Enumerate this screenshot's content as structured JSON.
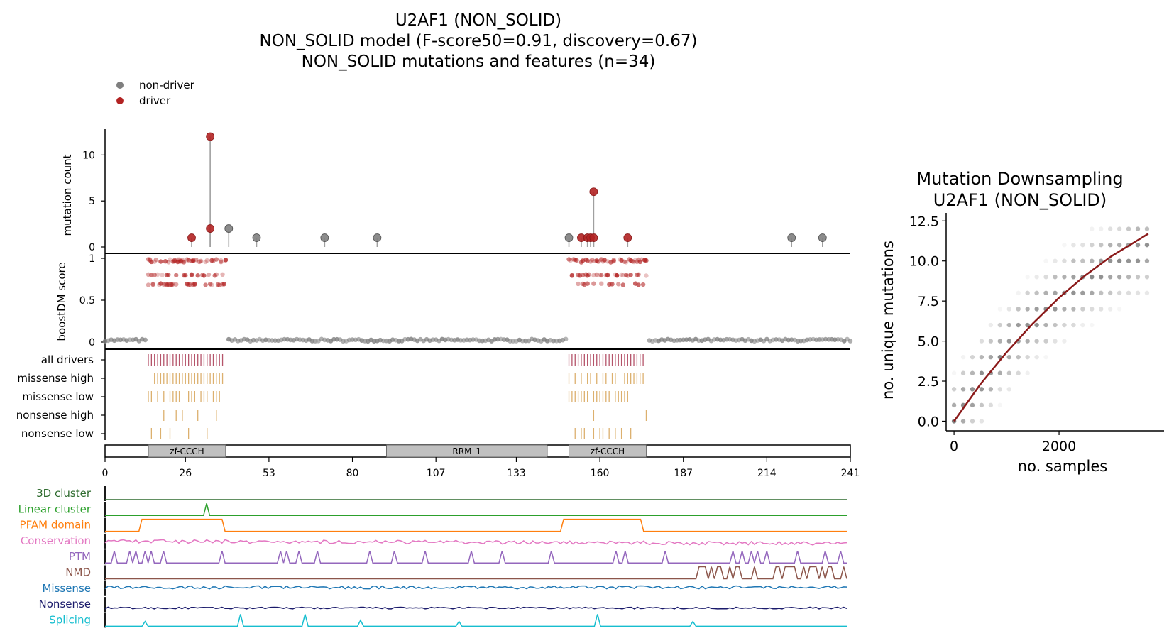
{
  "title_lines": [
    "U2AF1 (NON_SOLID)",
    "NON_SOLID model (F-score50=0.91, discovery=0.67)",
    "NON_SOLID mutations and features (n=34)"
  ],
  "legend": {
    "placement": "top-left",
    "items": [
      {
        "label": "non-driver",
        "color": "#7f7f7f"
      },
      {
        "label": "driver",
        "color": "#b22222"
      }
    ]
  },
  "colors": {
    "driver": "#b22222",
    "non_driver": "#7f7f7f",
    "stem": "#a0a0a0",
    "all_drivers_tick": "#b5546a",
    "consequence_tick": "#dcb06e",
    "domain_fill": "#c0c0c0",
    "downsampling_curve": "#8b1a1a"
  },
  "chart_data": [
    {
      "type": "scatter",
      "panel": "lollipop",
      "ylabel": "mutation count",
      "xlim": [
        0,
        241
      ],
      "y_ticks": [
        0,
        5,
        10
      ],
      "ylim": [
        0,
        12.5
      ],
      "points": [
        {
          "pos": 28,
          "count": 1,
          "driver": true
        },
        {
          "pos": 34,
          "count": 12,
          "driver": true
        },
        {
          "pos": 34,
          "count": 2,
          "driver": true
        },
        {
          "pos": 40,
          "count": 2,
          "driver": false
        },
        {
          "pos": 49,
          "count": 1,
          "driver": false
        },
        {
          "pos": 71,
          "count": 1,
          "driver": false
        },
        {
          "pos": 88,
          "count": 1,
          "driver": false
        },
        {
          "pos": 150,
          "count": 1,
          "driver": false
        },
        {
          "pos": 154,
          "count": 1,
          "driver": true
        },
        {
          "pos": 156,
          "count": 1,
          "driver": true
        },
        {
          "pos": 157,
          "count": 1,
          "driver": true
        },
        {
          "pos": 158,
          "count": 6,
          "driver": true
        },
        {
          "pos": 158,
          "count": 1,
          "driver": true
        },
        {
          "pos": 169,
          "count": 1,
          "driver": true
        },
        {
          "pos": 222,
          "count": 1,
          "driver": false
        },
        {
          "pos": 232,
          "count": 1,
          "driver": false
        }
      ]
    },
    {
      "type": "scatter",
      "panel": "boostdm",
      "ylabel": "boostDM score",
      "xlim": [
        0,
        241
      ],
      "y_ticks": [
        0,
        0.5,
        1
      ],
      "y_tick_labels": [
        "0",
        "0.5",
        "1"
      ],
      "ylim": [
        0,
        1
      ],
      "driver_regions": [
        [
          14,
          39
        ],
        [
          150,
          175
        ]
      ],
      "driver_scores": [
        0.98,
        0.96,
        0.8,
        0.69
      ],
      "non_driver_score": 0.01
    },
    {
      "type": "table",
      "panel": "consequence_ticks",
      "rows": [
        {
          "label": "all drivers",
          "positions": [
            14,
            15,
            16,
            17,
            18,
            19,
            20,
            21,
            22,
            23,
            24,
            25,
            26,
            27,
            28,
            29,
            30,
            31,
            32,
            33,
            34,
            35,
            36,
            37,
            38,
            150,
            151,
            152,
            153,
            154,
            155,
            156,
            157,
            158,
            159,
            160,
            161,
            162,
            163,
            164,
            165,
            166,
            167,
            168,
            169,
            170,
            171,
            172,
            173,
            174
          ]
        },
        {
          "label": "missense high",
          "positions": [
            16,
            17,
            18,
            19,
            20,
            21,
            22,
            23,
            24,
            25,
            26,
            27,
            28,
            29,
            30,
            31,
            32,
            33,
            34,
            35,
            36,
            37,
            38,
            150,
            152,
            154,
            156,
            157,
            159,
            161,
            162,
            164,
            165,
            168,
            169,
            170,
            171,
            172,
            173,
            174
          ]
        },
        {
          "label": "missense low",
          "positions": [
            14,
            15,
            17,
            19,
            21,
            22,
            23,
            24,
            27,
            28,
            29,
            31,
            32,
            33,
            35,
            36,
            37,
            150,
            151,
            152,
            153,
            154,
            155,
            156,
            158,
            159,
            160,
            161,
            162,
            163,
            165,
            166,
            167,
            168,
            169
          ]
        },
        {
          "label": "nonsense high",
          "positions": [
            19,
            23,
            25,
            30,
            36,
            158,
            175
          ]
        },
        {
          "label": "nonsense low",
          "positions": [
            15,
            18,
            21,
            27,
            33,
            152,
            154,
            155,
            158,
            160,
            161,
            163,
            165,
            167,
            170
          ]
        }
      ]
    },
    {
      "type": "bar",
      "panel": "protein_domains",
      "x_ticks": [
        0,
        26,
        53,
        80,
        107,
        133,
        160,
        187,
        214,
        241
      ],
      "xlim": [
        0,
        241
      ],
      "domains": [
        {
          "name": "zf-CCCH",
          "start": 14,
          "end": 39
        },
        {
          "name": "RRM_1",
          "start": 91,
          "end": 143
        },
        {
          "name": "zf-CCCH",
          "start": 150,
          "end": 175
        }
      ]
    },
    {
      "type": "line",
      "panel": "feature_tracks",
      "xlim": [
        0,
        241
      ],
      "tracks": [
        {
          "name": "3D cluster",
          "color": "#2e6b2e",
          "baseline": 0,
          "peaks": []
        },
        {
          "name": "Linear cluster",
          "color": "#2ca02c",
          "baseline": 0,
          "peaks": [
            [
              33,
              1.0
            ]
          ]
        },
        {
          "name": "PFAM domain",
          "color": "#ff7f0e",
          "baseline": 0,
          "plateaus": [
            [
              12,
              38
            ],
            [
              149,
              174
            ]
          ]
        },
        {
          "name": "Conservation",
          "color": "#e377c2",
          "baseline": 0.5,
          "noise": 0.3,
          "trend": -0.2
        },
        {
          "name": "PTM",
          "color": "#9467bd",
          "baseline": 0,
          "peaks": [
            [
              3,
              1
            ],
            [
              8,
              1
            ],
            [
              10,
              1
            ],
            [
              13,
              1
            ],
            [
              15,
              1
            ],
            [
              19,
              1
            ],
            [
              38,
              1
            ],
            [
              57,
              1
            ],
            [
              59,
              1
            ],
            [
              63,
              1
            ],
            [
              69,
              1
            ],
            [
              86,
              1
            ],
            [
              94,
              1
            ],
            [
              104,
              1
            ],
            [
              119,
              1
            ],
            [
              129,
              1
            ],
            [
              145,
              1
            ],
            [
              166,
              1
            ],
            [
              169,
              1
            ],
            [
              182,
              1
            ],
            [
              204,
              1
            ],
            [
              207,
              1
            ],
            [
              210,
              1
            ],
            [
              212,
              1
            ],
            [
              215,
              1
            ],
            [
              225,
              1
            ],
            [
              234,
              1
            ],
            [
              239,
              1
            ]
          ]
        },
        {
          "name": "NMD",
          "color": "#8c564b",
          "baseline": 0,
          "plateaus": [
            [
              193,
              195
            ],
            [
              199,
              200
            ],
            [
              205,
              206
            ],
            [
              218,
              219
            ],
            [
              222,
              224
            ],
            [
              229,
              231
            ],
            [
              235,
              236
            ]
          ],
          "peaks": [
            [
              197,
              1
            ],
            [
              203,
              1
            ],
            [
              211,
              1
            ],
            [
              221,
              1
            ],
            [
              227,
              1
            ],
            [
              233,
              1
            ],
            [
              240,
              1
            ]
          ]
        },
        {
          "name": "Missense",
          "color": "#1f77b4",
          "baseline": 0.6,
          "noise": 0.25
        },
        {
          "name": "Nonsense",
          "color": "#1a1a6b",
          "baseline": 0.2,
          "noise": 0.15
        },
        {
          "name": "Splicing",
          "color": "#17becf",
          "baseline": 0,
          "peaks": [
            [
              13,
              0.4
            ],
            [
              44,
              1
            ],
            [
              65,
              1
            ],
            [
              83,
              0.5
            ],
            [
              115,
              0.4
            ],
            [
              160,
              1
            ],
            [
              191,
              0.4
            ]
          ]
        }
      ]
    },
    {
      "type": "scatter",
      "panel": "downsampling",
      "title": "Mutation Downsampling\nU2AF1 (NON_SOLID)",
      "title_lines": [
        "Mutation Downsampling",
        "U2AF1 (NON_SOLID)"
      ],
      "xlabel": "no. samples",
      "ylabel": "no. unique mutations",
      "x_ticks": [
        0,
        2000
      ],
      "y_ticks": [
        0.0,
        2.5,
        5.0,
        7.5,
        10.0,
        12.5
      ],
      "y_tick_labels": [
        "0.0",
        "2.5",
        "5.0",
        "7.5",
        "10.0",
        "12.5"
      ],
      "xlim": [
        -150,
        4000
      ],
      "ylim": [
        -0.6,
        13.0
      ],
      "sample_step": 175,
      "sample_count": 22,
      "curve": [
        [
          0,
          0
        ],
        [
          500,
          2.3
        ],
        [
          1000,
          4.3
        ],
        [
          1500,
          6.1
        ],
        [
          2000,
          7.7
        ],
        [
          2500,
          9.1
        ],
        [
          3000,
          10.3
        ],
        [
          3500,
          11.3
        ],
        [
          3700,
          11.7
        ]
      ]
    }
  ]
}
